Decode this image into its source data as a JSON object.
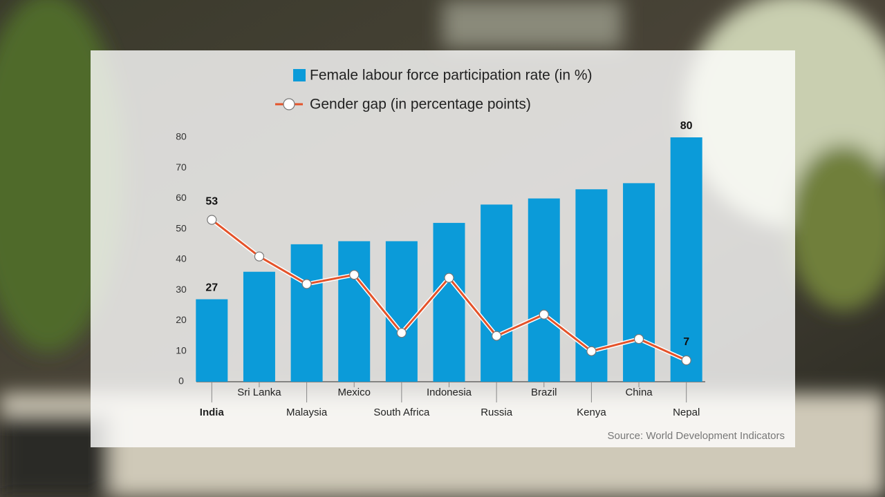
{
  "chart_data": {
    "type": "bar",
    "categories": [
      "India",
      "Sri Lanka",
      "Malaysia",
      "Mexico",
      "South Africa",
      "Indonesia",
      "Russia",
      "Brazil",
      "Kenya",
      "China",
      "Nepal"
    ],
    "series": [
      {
        "name": "Female labour force participation rate (in %)",
        "color": "#0b9bd9",
        "type": "bar",
        "values": [
          27,
          36,
          45,
          46,
          46,
          52,
          58,
          60,
          63,
          65,
          80
        ],
        "value_labels": [
          "27",
          null,
          null,
          null,
          null,
          null,
          null,
          null,
          null,
          null,
          "80"
        ]
      },
      {
        "name": "Gender gap (in percentage points)",
        "color": "#e4532a",
        "type": "line",
        "values": [
          53,
          41,
          32,
          35,
          16,
          34,
          15,
          22,
          10,
          14,
          7
        ],
        "value_labels": [
          "53",
          null,
          null,
          null,
          null,
          null,
          null,
          null,
          null,
          null,
          "7"
        ]
      }
    ],
    "ylim": [
      0,
      80
    ],
    "yticks": [
      0,
      10,
      20,
      30,
      40,
      50,
      60,
      70,
      80
    ],
    "source": "Source: World Development Indicators"
  }
}
